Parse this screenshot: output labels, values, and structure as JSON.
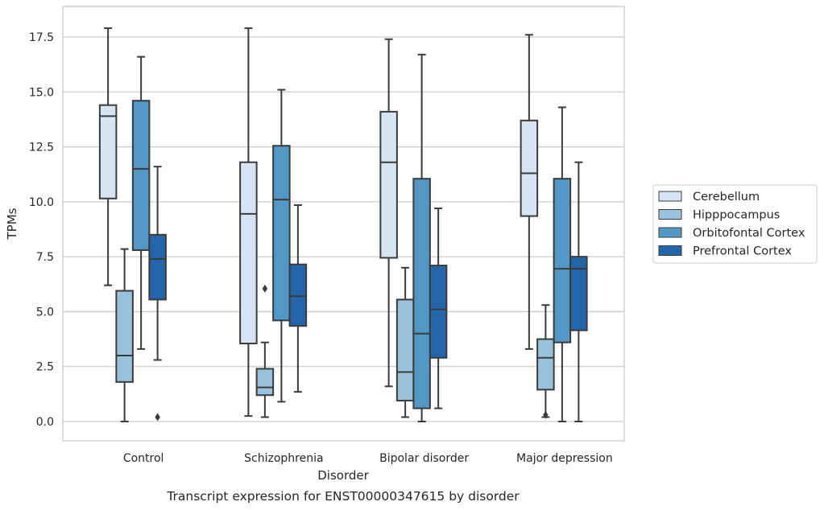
{
  "chart_data": {
    "type": "box",
    "caption": "Transcript expression for ENST00000347615 by disorder",
    "xlabel": "Disorder",
    "ylabel": "TPMs",
    "ylim": [
      -0.9,
      18.3
    ],
    "yticks": [
      "0.0",
      "2.5",
      "5.0",
      "7.5",
      "10.0",
      "12.5",
      "15.0",
      "17.5"
    ],
    "grid": "horizontal",
    "legend_position": "right",
    "categories": [
      "Control",
      "Schizophrenia",
      "Bipolar disorder",
      "Major depression"
    ],
    "series": [
      {
        "name": "Cerebellum",
        "color": "#d6e4f3",
        "boxes": [
          {
            "whisker_low": 6.2,
            "q1": 10.15,
            "median": 13.9,
            "q3": 14.4,
            "whisker_high": 17.9,
            "outliers": []
          },
          {
            "whisker_low": 0.25,
            "q1": 3.55,
            "median": 9.45,
            "q3": 11.8,
            "whisker_high": 17.9,
            "outliers": []
          },
          {
            "whisker_low": 1.6,
            "q1": 7.45,
            "median": 11.8,
            "q3": 14.1,
            "whisker_high": 17.4,
            "outliers": []
          },
          {
            "whisker_low": 3.3,
            "q1": 9.35,
            "median": 11.3,
            "q3": 13.7,
            "whisker_high": 17.6,
            "outliers": []
          }
        ]
      },
      {
        "name": "Hipppocampus",
        "color": "#9ac2dc",
        "boxes": [
          {
            "whisker_low": 0.0,
            "q1": 1.8,
            "median": 3.0,
            "q3": 5.95,
            "whisker_high": 7.85,
            "outliers": []
          },
          {
            "whisker_low": 0.2,
            "q1": 1.2,
            "median": 1.55,
            "q3": 2.4,
            "whisker_high": 3.6,
            "outliers": [
              6.05
            ]
          },
          {
            "whisker_low": 0.2,
            "q1": 0.95,
            "median": 2.25,
            "q3": 5.55,
            "whisker_high": 7.0,
            "outliers": []
          },
          {
            "whisker_low": 0.2,
            "q1": 1.45,
            "median": 2.9,
            "q3": 3.75,
            "whisker_high": 5.3,
            "outliers": [
              0.3
            ]
          }
        ]
      },
      {
        "name": "Orbitofontal Cortex",
        "color": "#5297c5",
        "boxes": [
          {
            "whisker_low": 3.3,
            "q1": 7.8,
            "median": 11.5,
            "q3": 14.6,
            "whisker_high": 16.6,
            "outliers": []
          },
          {
            "whisker_low": 0.9,
            "q1": 4.6,
            "median": 10.1,
            "q3": 12.55,
            "whisker_high": 15.1,
            "outliers": []
          },
          {
            "whisker_low": 0.0,
            "q1": 0.6,
            "median": 4.0,
            "q3": 11.05,
            "whisker_high": 16.7,
            "outliers": []
          },
          {
            "whisker_low": 0.0,
            "q1": 3.6,
            "median": 6.95,
            "q3": 11.05,
            "whisker_high": 14.3,
            "outliers": []
          }
        ]
      },
      {
        "name": "Prefrontal Cortex",
        "color": "#2464a8",
        "boxes": [
          {
            "whisker_low": 2.8,
            "q1": 5.55,
            "median": 7.4,
            "q3": 8.5,
            "whisker_high": 11.6,
            "outliers": [
              0.2
            ]
          },
          {
            "whisker_low": 1.35,
            "q1": 4.35,
            "median": 5.7,
            "q3": 7.15,
            "whisker_high": 9.85,
            "outliers": []
          },
          {
            "whisker_low": 0.6,
            "q1": 2.9,
            "median": 5.1,
            "q3": 7.1,
            "whisker_high": 9.7,
            "outliers": []
          },
          {
            "whisker_low": 0.0,
            "q1": 4.15,
            "median": 6.95,
            "q3": 7.5,
            "whisker_high": 11.8,
            "outliers": []
          }
        ]
      }
    ]
  }
}
